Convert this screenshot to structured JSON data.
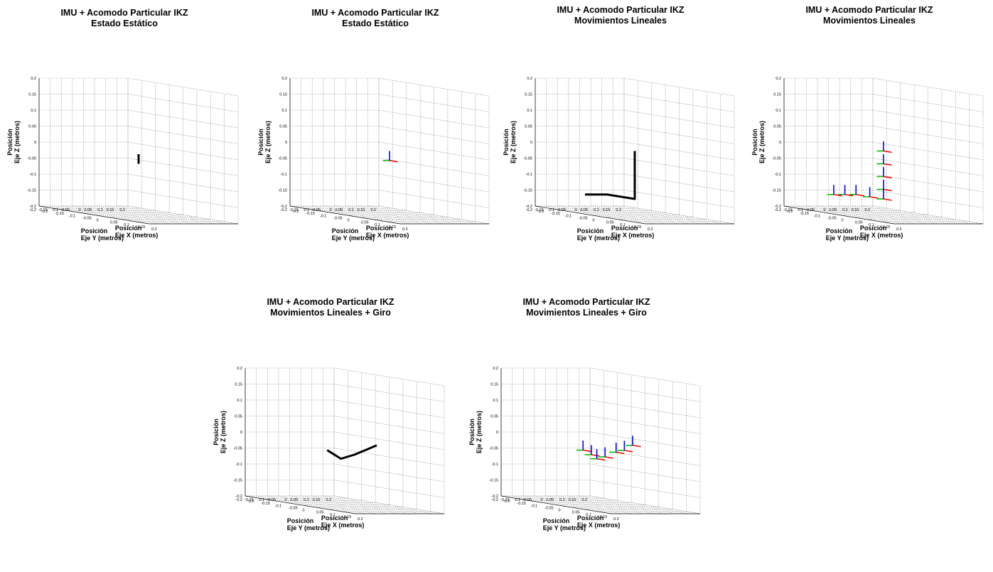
{
  "labels": {
    "z_line1": "Posición",
    "z_line2": "Eje Z (metros)",
    "y_line1": "Posición",
    "y_line2": "Eje Y (metros)",
    "x_line1": "Posición",
    "x_line2": "Eje X (metros)"
  },
  "ticks": {
    "z": [
      "-0.2",
      "-0.15",
      "-0.1",
      "-0.05",
      "0",
      "0.05",
      "0.1",
      "0.15",
      "0.2"
    ],
    "y": [
      "-0.2",
      "-0.15",
      "-0.1",
      "-0.05",
      "0",
      "0.05",
      "0.1",
      "0.15",
      "0.2"
    ],
    "x": [
      "-0.2",
      "-0.15",
      "-0.1",
      "-0.05",
      "0",
      "0.05",
      "0.1",
      "0.15",
      "0.2"
    ]
  },
  "colors": {
    "path": "#000000",
    "axis_x": "#ff0000",
    "axis_y": "#00c000",
    "axis_z": "#0000ff",
    "grid": "#888888"
  },
  "chart_data": [
    {
      "type": "line3d",
      "title_line1": "IMU + Acomodo Particular IKZ",
      "title_line2": "Estado Estático",
      "xlim": [
        -0.2,
        0.2
      ],
      "ylim": [
        -0.2,
        0.2
      ],
      "zlim": [
        -0.2,
        0.2
      ],
      "grid": true,
      "path": [
        [
          0,
          0,
          -0.01
        ],
        [
          0,
          0,
          -0.04
        ]
      ],
      "frames": []
    },
    {
      "type": "line3d",
      "title_line1": "IMU + Acomodo Particular IKZ",
      "title_line2": "Estado Estático",
      "xlim": [
        -0.2,
        0.2
      ],
      "ylim": [
        -0.2,
        0.2
      ],
      "zlim": [
        -0.2,
        0.2
      ],
      "grid": true,
      "path": [],
      "frames": [
        [
          0,
          0,
          -0.03
        ]
      ]
    },
    {
      "type": "line3d",
      "title_line1": "IMU + Acomodo Particular IKZ",
      "title_line2": "Movimientos Lineales",
      "xlim": [
        -0.2,
        0.2
      ],
      "ylim": [
        -0.2,
        0.2
      ],
      "zlim": [
        -0.2,
        0.2
      ],
      "grid": true,
      "path": [
        [
          0,
          0,
          0
        ],
        [
          0,
          0,
          -0.15
        ],
        [
          -0.1,
          0,
          -0.15
        ],
        [
          -0.1,
          -0.1,
          -0.15
        ]
      ],
      "frames": []
    },
    {
      "type": "line3d",
      "title_line1": "IMU + Acomodo Particular IKZ",
      "title_line2": "Movimientos Lineales",
      "xlim": [
        -0.2,
        0.2
      ],
      "ylim": [
        -0.2,
        0.2
      ],
      "zlim": [
        -0.2,
        0.2
      ],
      "grid": true,
      "path": [],
      "frames": [
        [
          0,
          0,
          0
        ],
        [
          0,
          0,
          -0.04
        ],
        [
          0,
          0,
          -0.08
        ],
        [
          0,
          0,
          -0.12
        ],
        [
          0,
          0,
          -0.15
        ],
        [
          -0.05,
          0,
          -0.15
        ],
        [
          -0.1,
          0,
          -0.15
        ],
        [
          -0.1,
          -0.05,
          -0.15
        ],
        [
          -0.1,
          -0.1,
          -0.15
        ]
      ]
    },
    {
      "type": "line3d",
      "title_line1": "IMU + Acomodo Particular IKZ",
      "title_line2": "Movimientos Lineales + Giro",
      "xlim": [
        -0.2,
        0.2
      ],
      "ylim": [
        -0.2,
        0.2
      ],
      "zlim": [
        -0.2,
        0.2
      ],
      "grid": true,
      "path": [
        [
          -0.08,
          0.02,
          -0.04
        ],
        [
          -0.03,
          0.02,
          -0.06
        ],
        [
          0.02,
          0.02,
          -0.04
        ],
        [
          0.1,
          0.02,
          0.0
        ]
      ],
      "frames": []
    },
    {
      "type": "line3d",
      "title_line1": "IMU + Acomodo Particular IKZ",
      "title_line2": "Movimientos Lineales + Giro",
      "xlim": [
        -0.2,
        0.2
      ],
      "ylim": [
        -0.2,
        0.2
      ],
      "zlim": [
        -0.2,
        0.2
      ],
      "grid": true,
      "path": [],
      "frames": [
        [
          -0.08,
          0.02,
          -0.04
        ],
        [
          -0.05,
          0.02,
          -0.05
        ],
        [
          -0.03,
          0.02,
          -0.06
        ],
        [
          0.0,
          0.02,
          -0.05
        ],
        [
          0.04,
          0.02,
          -0.03
        ],
        [
          0.07,
          0.02,
          -0.02
        ],
        [
          0.1,
          0.02,
          0.0
        ]
      ]
    }
  ]
}
